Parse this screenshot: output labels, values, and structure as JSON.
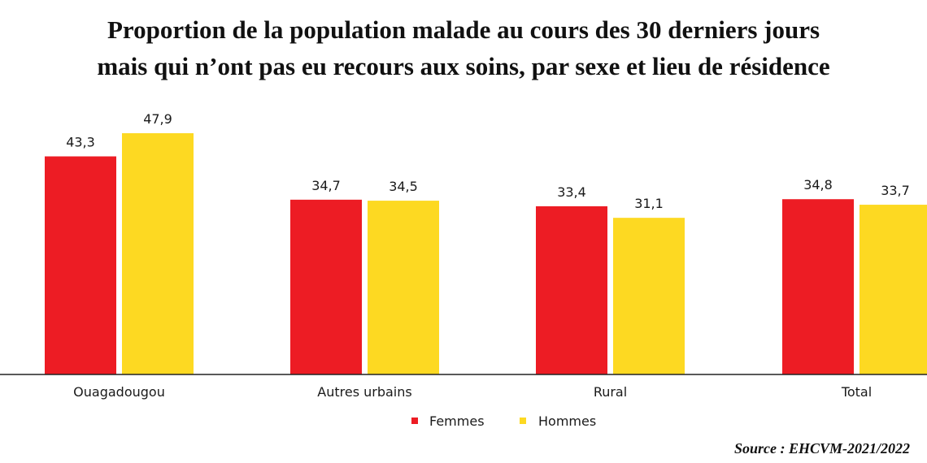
{
  "chart_data": {
    "type": "bar",
    "title_lines": [
      "Proportion de la population malade au cours des 30 derniers jours",
      "mais qui n’ont pas eu recours aux soins, par sexe et lieu de résidence"
    ],
    "categories": [
      "Ouagadougou",
      "Autres urbains",
      "Rural",
      "Total"
    ],
    "series": [
      {
        "name": "Femmes",
        "color": "#ED1C24",
        "values": [
          43.3,
          34.7,
          33.4,
          34.8
        ],
        "labels": [
          "43,3",
          "34,7",
          "33,4",
          "34,8"
        ]
      },
      {
        "name": "Hommes",
        "color": "#FDD922",
        "values": [
          47.9,
          34.5,
          31.1,
          33.7
        ],
        "labels": [
          "47,9",
          "34,5",
          "31,1",
          "33,7"
        ]
      }
    ],
    "ylim": [
      0,
      55
    ],
    "grid": false,
    "legend_position": "bottom-center",
    "source": "Source : EHCVM-2021/2022"
  }
}
